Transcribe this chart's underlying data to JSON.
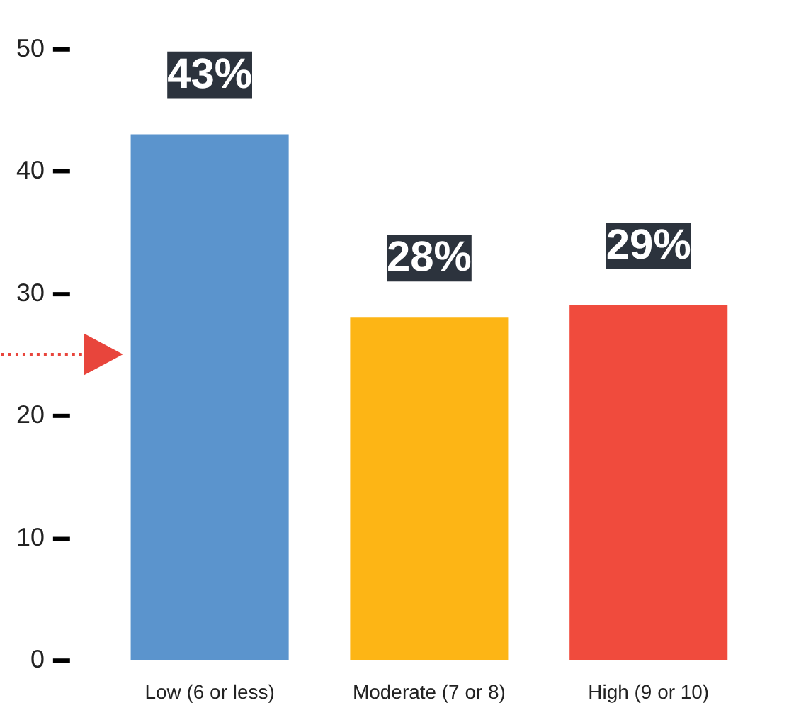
{
  "chart_data": {
    "type": "bar",
    "categories": [
      "Low (6 or less)",
      "Moderate (7 or 8)",
      "High (9 or 10)"
    ],
    "values": [
      43,
      28,
      29
    ],
    "colors": [
      "#5b94cd",
      "#fdb515",
      "#f04b3d"
    ],
    "value_labels": [
      "43%",
      "28%",
      "29%"
    ],
    "ylim": [
      0,
      50
    ],
    "yticks": [
      0,
      10,
      20,
      30,
      40,
      50
    ],
    "grid": false
  }
}
